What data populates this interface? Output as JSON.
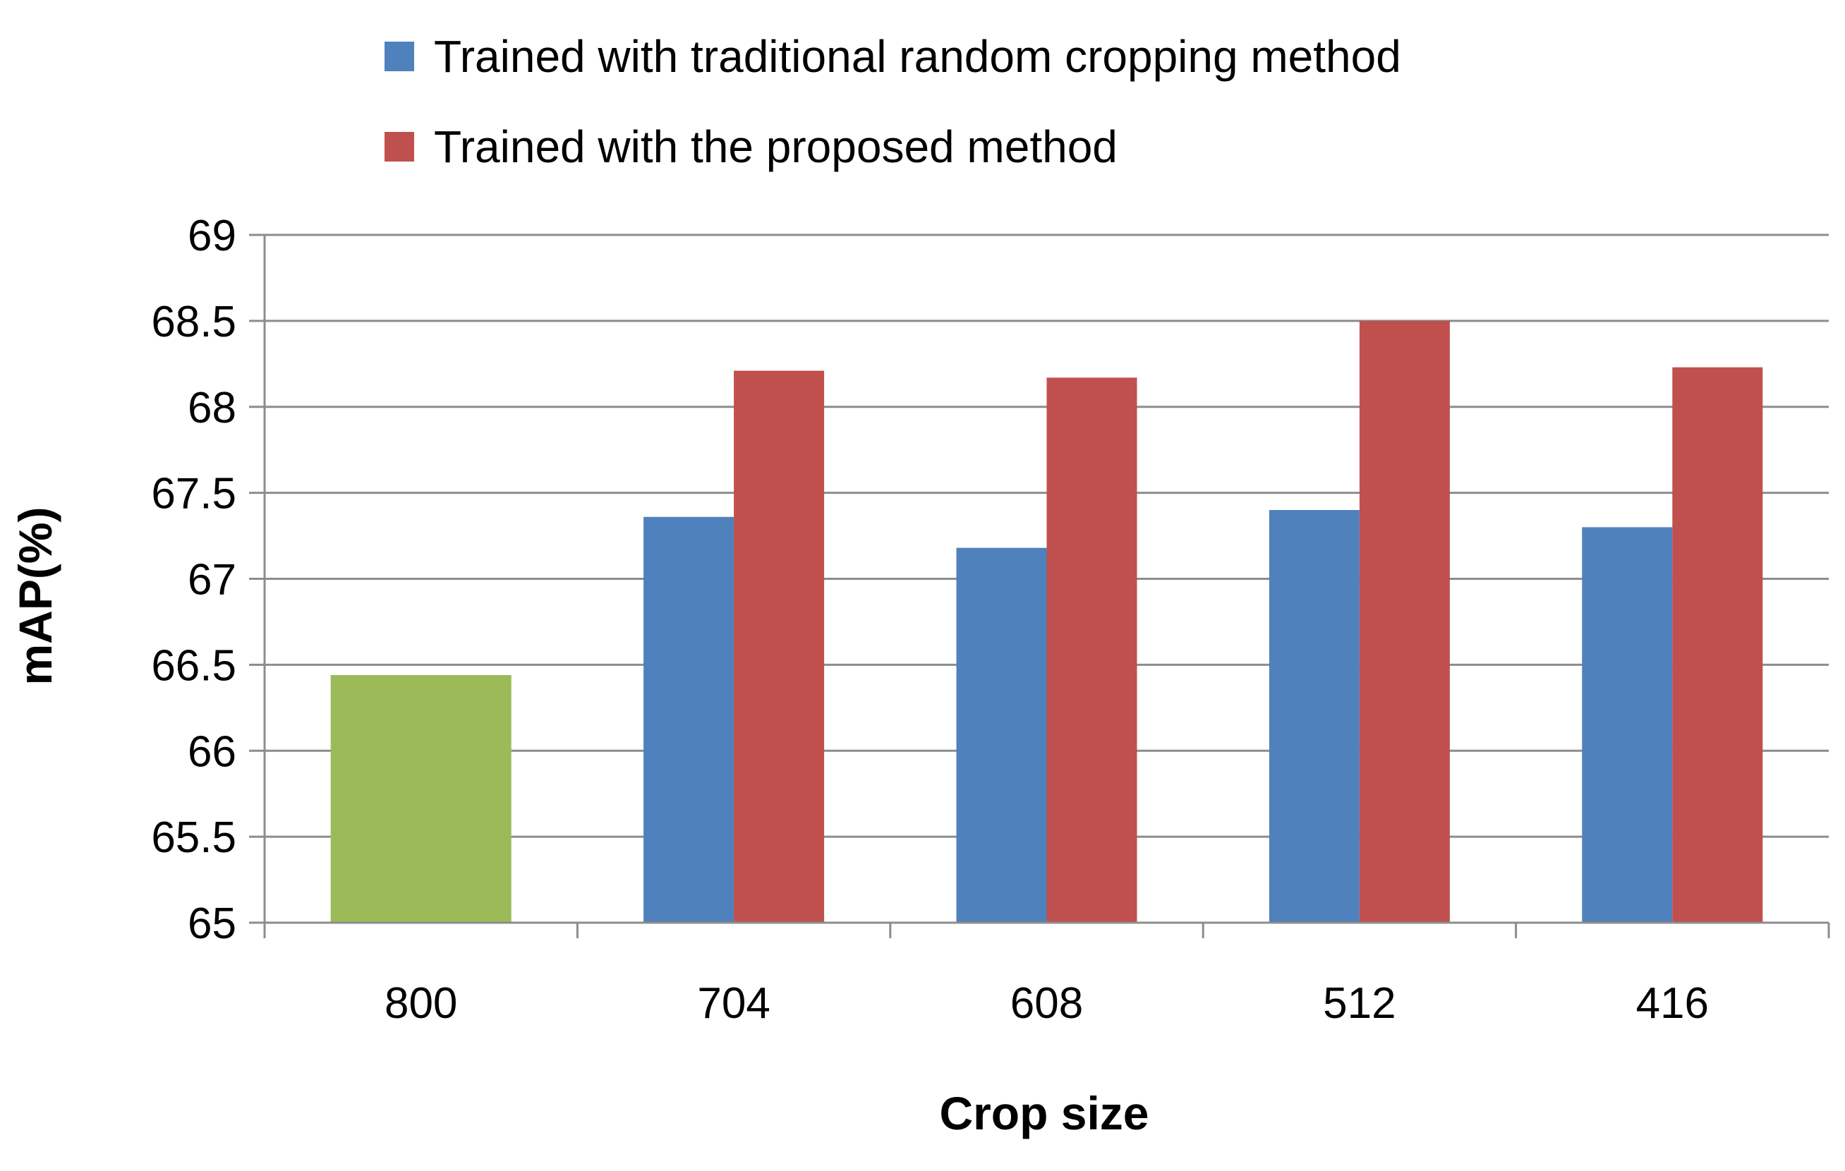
{
  "chart_data": {
    "type": "bar",
    "categories": [
      "800",
      "704",
      "608",
      "512",
      "416"
    ],
    "series": [
      {
        "name": "Trained with traditional random cropping method",
        "color": "#4F81BD",
        "values": [
          null,
          67.36,
          67.18,
          67.4,
          67.3
        ]
      },
      {
        "name": "Trained with the proposed method",
        "color": "#C0504D",
        "values": [
          null,
          68.21,
          68.17,
          68.5,
          68.23
        ]
      },
      {
        "name": "",
        "color": "#9BBB59",
        "values": [
          66.44,
          null,
          null,
          null,
          null
        ]
      }
    ],
    "xlabel": "Crop size",
    "ylabel": "mAP(%)",
    "ylim": [
      65,
      69
    ],
    "yticks": [
      "65",
      "65.5",
      "66",
      "66.5",
      "67",
      "67.5",
      "68",
      "68.5",
      "69"
    ],
    "grid": true,
    "legend_position": "top"
  }
}
